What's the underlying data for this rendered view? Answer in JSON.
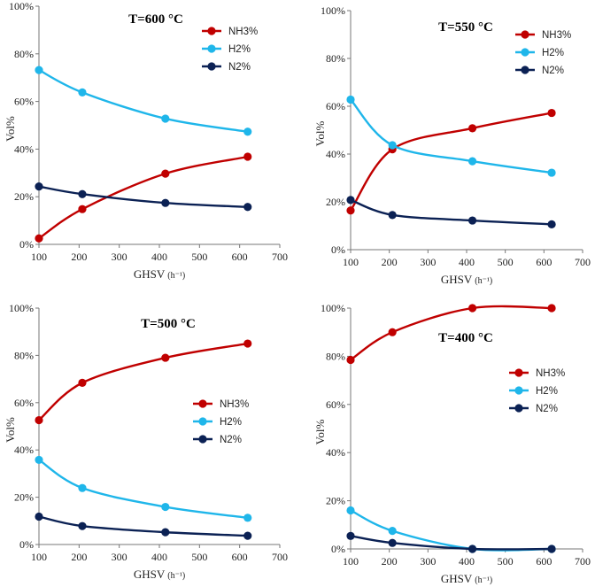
{
  "colors": {
    "NH3%": "#c00000",
    "H2%": "#1fb6ea",
    "N2%": "#0b2154"
  },
  "chart_data": [
    {
      "type": "line",
      "title": "T=600 °C",
      "xlabel": "GHSV",
      "xlabel_unit": "(h⁻¹)",
      "ylabel": "Vol%",
      "x": [
        100,
        208,
        415,
        620
      ],
      "xlim": [
        100,
        700
      ],
      "xticks": [
        "100",
        "200",
        "300",
        "400",
        "500",
        "600",
        "700"
      ],
      "ylim": [
        0,
        100
      ],
      "yticks": [
        "0%",
        "20%",
        "40%",
        "60%",
        "80%",
        "100%"
      ],
      "legend_position": "top-right",
      "series": [
        {
          "name": "NH3%",
          "values": [
            2.5,
            14.8,
            29.7,
            36.8
          ]
        },
        {
          "name": "H2%",
          "values": [
            73.2,
            63.8,
            52.8,
            47.3
          ]
        },
        {
          "name": "N2%",
          "values": [
            24.3,
            21.1,
            17.4,
            15.7
          ]
        }
      ]
    },
    {
      "type": "line",
      "title": "T=550 °C",
      "xlabel": "GHSV",
      "xlabel_unit": "(h⁻¹)",
      "ylabel": "Vol%",
      "x": [
        100,
        208,
        415,
        620
      ],
      "xlim": [
        100,
        700
      ],
      "xticks": [
        "100",
        "200",
        "300",
        "400",
        "500",
        "600",
        "700"
      ],
      "ylim": [
        0,
        100
      ],
      "yticks": [
        "0%",
        "20%",
        "40%",
        "60%",
        "80%",
        "100%"
      ],
      "legend_position": "top-right",
      "series": [
        {
          "name": "NH3%",
          "values": [
            16.4,
            42.0,
            50.8,
            57.2
          ]
        },
        {
          "name": "H2%",
          "values": [
            62.8,
            43.7,
            37.0,
            32.2
          ]
        },
        {
          "name": "N2%",
          "values": [
            20.8,
            14.5,
            12.2,
            10.6
          ]
        }
      ]
    },
    {
      "type": "line",
      "title": "T=500 °C",
      "xlabel": "GHSV",
      "xlabel_unit": "(h⁻¹)",
      "ylabel": "Vol%",
      "x": [
        100,
        208,
        415,
        620
      ],
      "xlim": [
        100,
        700
      ],
      "xticks": [
        "100",
        "200",
        "300",
        "400",
        "500",
        "600",
        "700"
      ],
      "ylim": [
        0,
        100
      ],
      "yticks": [
        "0%",
        "20%",
        "40%",
        "60%",
        "80%",
        "100%"
      ],
      "legend_position": "center-right",
      "series": [
        {
          "name": "NH3%",
          "values": [
            52.6,
            68.4,
            79.0,
            85.0
          ]
        },
        {
          "name": "H2%",
          "values": [
            35.8,
            23.9,
            15.9,
            11.3
          ]
        },
        {
          "name": "N2%",
          "values": [
            11.8,
            7.8,
            5.2,
            3.7
          ]
        }
      ]
    },
    {
      "type": "line",
      "title": "T=400 °C",
      "xlabel": "GHSV",
      "xlabel_unit": "(h⁻¹)",
      "ylabel": "Vol%",
      "x": [
        100,
        208,
        415,
        620
      ],
      "xlim": [
        100,
        700
      ],
      "xticks": [
        "100",
        "200",
        "300",
        "400",
        "500",
        "600",
        "700"
      ],
      "ylim": [
        0,
        100
      ],
      "yticks": [
        "0%",
        "20%",
        "40%",
        "60%",
        "80%",
        "100%"
      ],
      "legend_position": "center-right",
      "series": [
        {
          "name": "NH3%",
          "values": [
            78.5,
            90.0,
            100.0,
            100.0
          ]
        },
        {
          "name": "H2%",
          "values": [
            16.0,
            7.5,
            0.0,
            0.0
          ]
        },
        {
          "name": "N2%",
          "values": [
            5.4,
            2.5,
            0.0,
            0.0
          ]
        }
      ]
    }
  ]
}
